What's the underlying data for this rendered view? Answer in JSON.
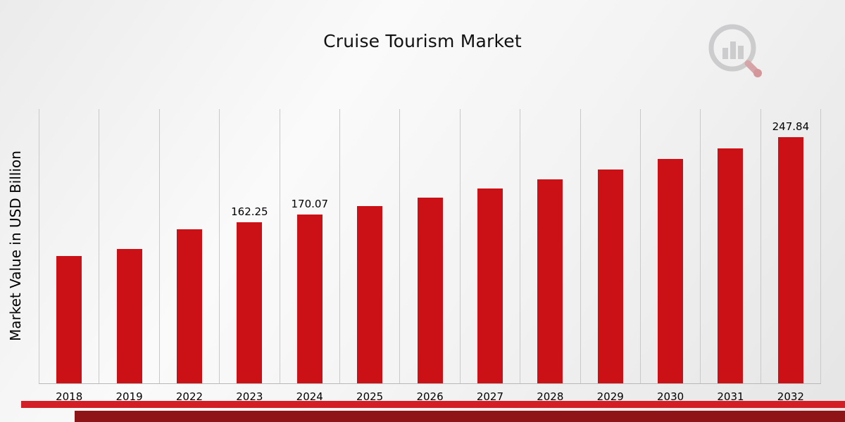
{
  "title": "Cruise Tourism Market",
  "chart_data": {
    "type": "bar",
    "title": "Cruise Tourism Market",
    "xlabel": "",
    "ylabel": "Market Value in USD Billion",
    "categories": [
      "2018",
      "2019",
      "2022",
      "2023",
      "2024",
      "2025",
      "2026",
      "2027",
      "2028",
      "2029",
      "2030",
      "2031",
      "2032"
    ],
    "values": [
      128,
      135,
      155,
      162.25,
      170.07,
      178.3,
      186.9,
      195.9,
      205.3,
      215.2,
      225.6,
      236.4,
      247.84
    ],
    "data_labels": {
      "2023": "162.25",
      "2024": "170.07",
      "2032": "247.84"
    },
    "ylim": [
      0,
      276
    ],
    "grid": "vertical",
    "legend": "none",
    "bar_color": "#cc1116"
  },
  "brand": {
    "logo": "magnifier-bar-chart-logo"
  },
  "footer": {
    "stripe_light_color": "#d21e24",
    "stripe_dark_color": "#8e1418"
  }
}
